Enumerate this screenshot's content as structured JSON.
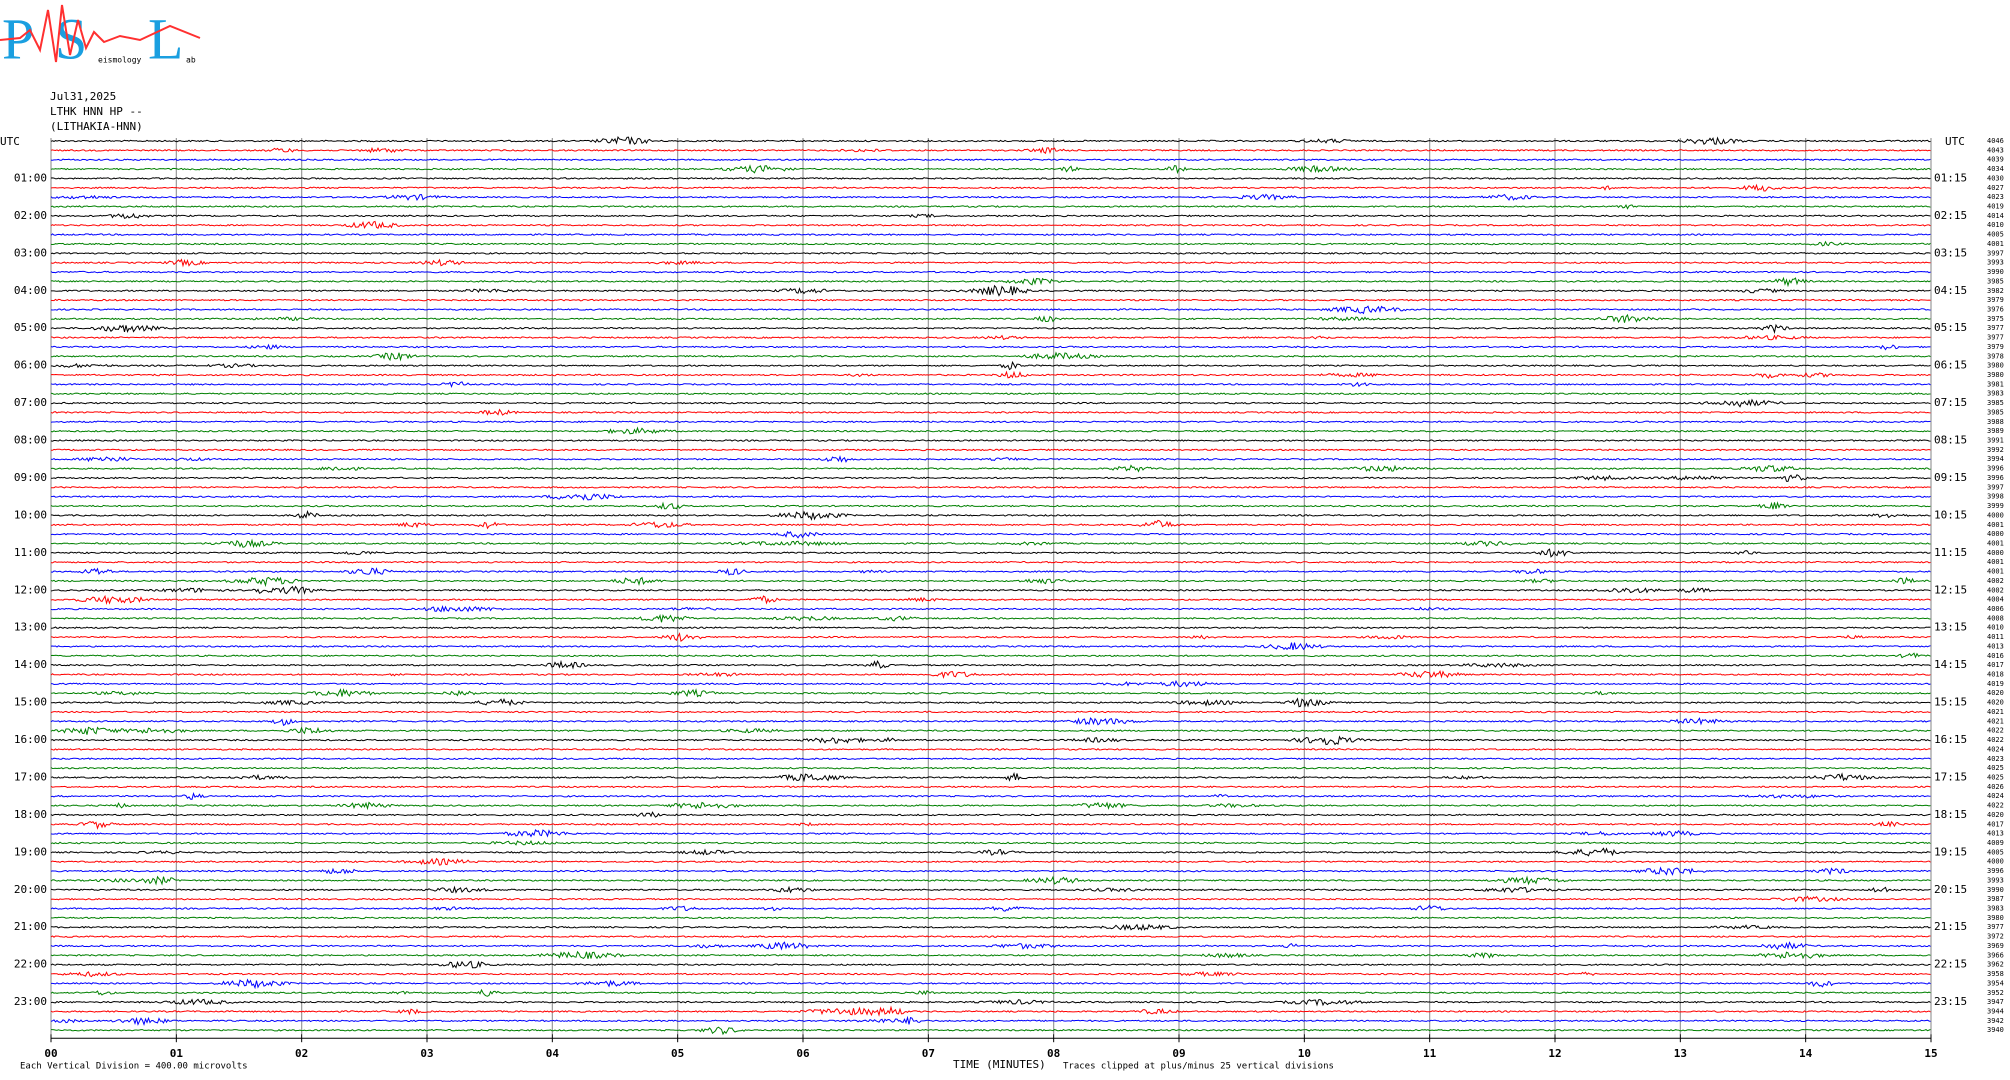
{
  "logo": {
    "letters": [
      "P",
      "S",
      "L"
    ],
    "small": [
      "eismology",
      "ab"
    ]
  },
  "header": {
    "date": "Jul31,2025",
    "station": "LTHK HNN HP --",
    "location": "(LITHAKIA-HNN)",
    "utc_left": "UTC",
    "utc_right": "UTC"
  },
  "left_labels": [
    "01:00",
    "02:00",
    "03:00",
    "04:00",
    "05:00",
    "06:00",
    "07:00",
    "08:00",
    "09:00",
    "10:00",
    "11:00",
    "12:00",
    "13:00",
    "14:00",
    "15:00",
    "16:00",
    "17:00",
    "18:00",
    "19:00",
    "20:00",
    "21:00",
    "22:00",
    "23:00"
  ],
  "right_labels": [
    "01:15",
    "02:15",
    "03:15",
    "04:15",
    "05:15",
    "06:15",
    "07:15",
    "08:15",
    "09:15",
    "10:15",
    "11:15",
    "12:15",
    "13:15",
    "14:15",
    "15:15",
    "16:15",
    "17:15",
    "18:15",
    "19:15",
    "20:15",
    "21:15",
    "22:15",
    "23:15"
  ],
  "trace_numbers": [
    "4046",
    "4043",
    "4039",
    "4034",
    "4030",
    "4027",
    "4023",
    "4019",
    "4014",
    "4010",
    "4005",
    "4001",
    "3997",
    "3993",
    "3990",
    "3985",
    "3982",
    "3979",
    "3976",
    "3975",
    "3977",
    "3977",
    "3979",
    "3978",
    "3980",
    "3980",
    "3981",
    "3983",
    "3985",
    "3985",
    "3988",
    "3989",
    "3991",
    "3992",
    "3994",
    "3996",
    "3996",
    "3997",
    "3998",
    "3999",
    "4000",
    "4001",
    "4000",
    "4001",
    "4000",
    "4001",
    "4001",
    "4002",
    "4002",
    "4004",
    "4006",
    "4008",
    "4010",
    "4011",
    "4013",
    "4016",
    "4017",
    "4018",
    "4019",
    "4020",
    "4020",
    "4021",
    "4021",
    "4022",
    "4022",
    "4024",
    "4023",
    "4025",
    "4025",
    "4026",
    "4024",
    "4022",
    "4020",
    "4017",
    "4013",
    "4009",
    "4005",
    "4000",
    "3996",
    "3993",
    "3990",
    "3987",
    "3983",
    "3980",
    "3977",
    "3972",
    "3969",
    "3966",
    "3962",
    "3958",
    "3954",
    "3952",
    "3947",
    "3944",
    "3942",
    "3940"
  ],
  "x_ticks": [
    "00",
    "01",
    "02",
    "03",
    "04",
    "05",
    "06",
    "07",
    "08",
    "09",
    "10",
    "11",
    "12",
    "13",
    "14",
    "15"
  ],
  "x_label": "TIME (MINUTES)",
  "footer_left": "Each Vertical Division =  400.00 microvolts",
  "footer_right": "Traces clipped at plus/minus 25 vertical divisions",
  "trace_colors": [
    "#000000",
    "#ff0000",
    "#0000ff",
    "#008000"
  ]
}
